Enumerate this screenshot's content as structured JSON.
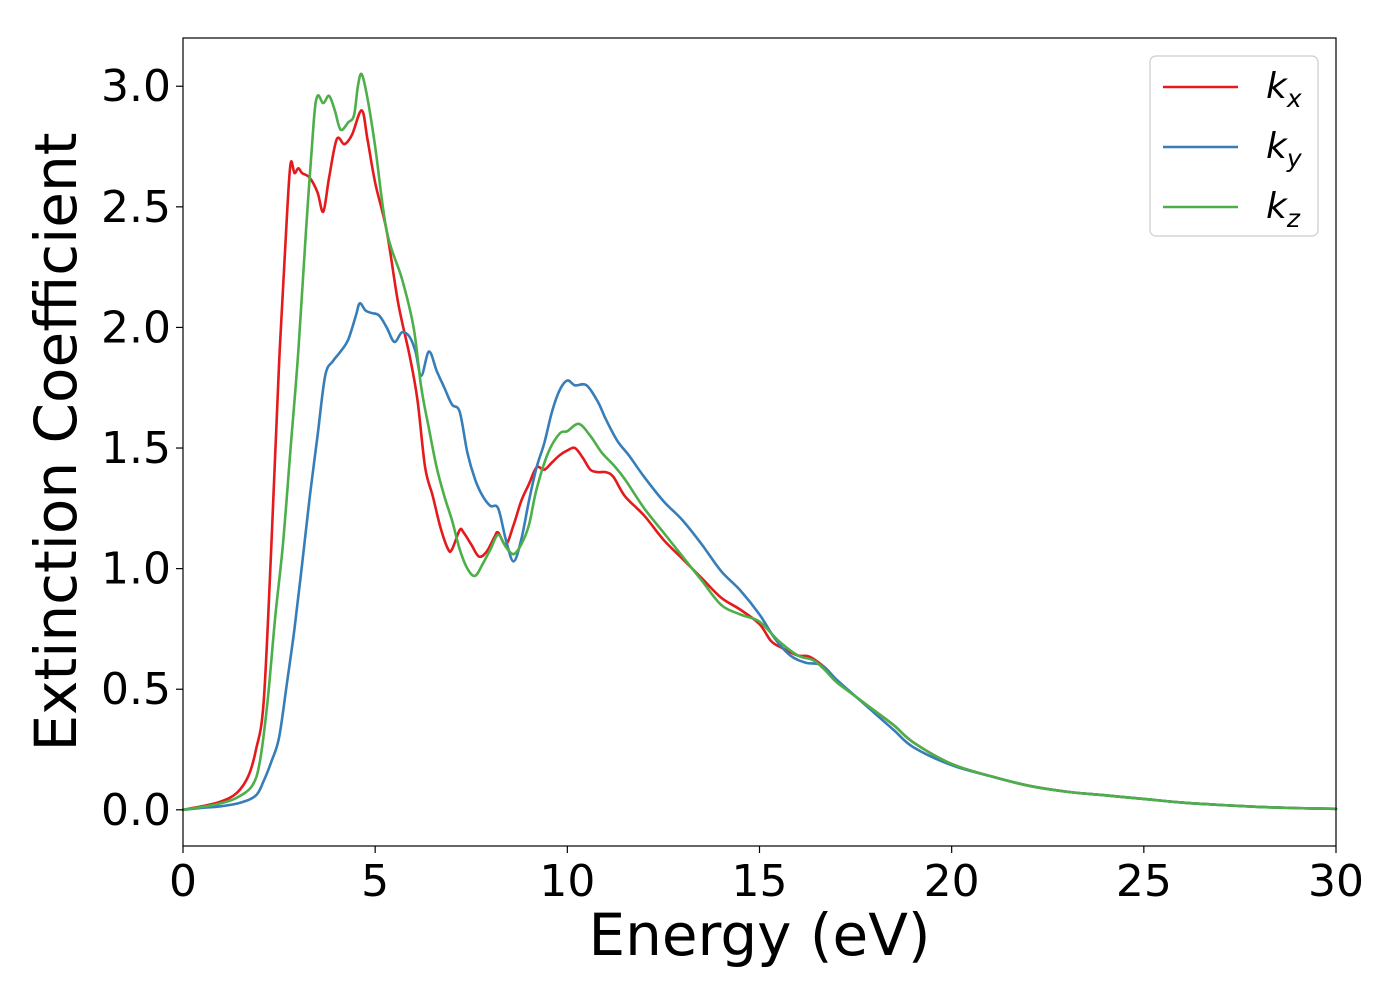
{
  "chart_data": {
    "type": "line",
    "title": "",
    "xlabel": "Energy (eV)",
    "ylabel": "Extinction Coefficient",
    "xlim": [
      0,
      30
    ],
    "ylim": [
      -0.15,
      3.2
    ],
    "xticks": [
      0,
      5,
      10,
      15,
      20,
      25,
      30
    ],
    "xtick_labels": [
      "0",
      "5",
      "10",
      "15",
      "20",
      "25",
      "30"
    ],
    "yticks": [
      0.0,
      0.5,
      1.0,
      1.5,
      2.0,
      2.5,
      3.0
    ],
    "ytick_labels": [
      "0.0",
      "0.5",
      "1.0",
      "1.5",
      "2.0",
      "2.5",
      "3.0"
    ],
    "grid": false,
    "legend_position": "top-right",
    "series": [
      {
        "name": "k_x",
        "label_base": "k",
        "label_sub": "x",
        "color": "#e41a1c",
        "points": [
          [
            0,
            0.0
          ],
          [
            0.5,
            0.015
          ],
          [
            1.0,
            0.035
          ],
          [
            1.4,
            0.07
          ],
          [
            1.7,
            0.14
          ],
          [
            1.9,
            0.25
          ],
          [
            2.1,
            0.45
          ],
          [
            2.3,
            1.1
          ],
          [
            2.5,
            1.85
          ],
          [
            2.7,
            2.45
          ],
          [
            2.8,
            2.68
          ],
          [
            2.9,
            2.64
          ],
          [
            3.0,
            2.66
          ],
          [
            3.1,
            2.64
          ],
          [
            3.3,
            2.62
          ],
          [
            3.5,
            2.56
          ],
          [
            3.65,
            2.48
          ],
          [
            3.8,
            2.62
          ],
          [
            4.0,
            2.78
          ],
          [
            4.2,
            2.76
          ],
          [
            4.4,
            2.8
          ],
          [
            4.65,
            2.9
          ],
          [
            4.8,
            2.78
          ],
          [
            5.0,
            2.6
          ],
          [
            5.3,
            2.4
          ],
          [
            5.6,
            2.1
          ],
          [
            5.9,
            1.88
          ],
          [
            6.1,
            1.7
          ],
          [
            6.3,
            1.42
          ],
          [
            6.5,
            1.3
          ],
          [
            6.7,
            1.17
          ],
          [
            6.9,
            1.08
          ],
          [
            7.0,
            1.08
          ],
          [
            7.2,
            1.16
          ],
          [
            7.3,
            1.15
          ],
          [
            7.5,
            1.1
          ],
          [
            7.7,
            1.05
          ],
          [
            7.9,
            1.07
          ],
          [
            8.1,
            1.13
          ],
          [
            8.2,
            1.15
          ],
          [
            8.4,
            1.1
          ],
          [
            8.6,
            1.18
          ],
          [
            8.8,
            1.28
          ],
          [
            9.0,
            1.35
          ],
          [
            9.2,
            1.42
          ],
          [
            9.4,
            1.41
          ],
          [
            9.6,
            1.44
          ],
          [
            9.8,
            1.47
          ],
          [
            10.0,
            1.49
          ],
          [
            10.2,
            1.5
          ],
          [
            10.4,
            1.46
          ],
          [
            10.6,
            1.41
          ],
          [
            10.8,
            1.4
          ],
          [
            11.0,
            1.4
          ],
          [
            11.2,
            1.38
          ],
          [
            11.5,
            1.3
          ],
          [
            12.0,
            1.22
          ],
          [
            12.5,
            1.12
          ],
          [
            13.0,
            1.04
          ],
          [
            13.5,
            0.96
          ],
          [
            14.0,
            0.88
          ],
          [
            14.5,
            0.83
          ],
          [
            15.0,
            0.77
          ],
          [
            15.3,
            0.7
          ],
          [
            15.6,
            0.67
          ],
          [
            16.0,
            0.64
          ],
          [
            16.3,
            0.635
          ],
          [
            16.7,
            0.59
          ],
          [
            17.0,
            0.54
          ],
          [
            17.5,
            0.47
          ],
          [
            18.0,
            0.41
          ],
          [
            18.5,
            0.35
          ],
          [
            19.0,
            0.28
          ],
          [
            20.0,
            0.19
          ],
          [
            21.0,
            0.14
          ],
          [
            22.0,
            0.1
          ],
          [
            23.0,
            0.075
          ],
          [
            24.0,
            0.06
          ],
          [
            25.0,
            0.045
          ],
          [
            26.0,
            0.03
          ],
          [
            27.0,
            0.02
          ],
          [
            28.0,
            0.012
          ],
          [
            29.0,
            0.007
          ],
          [
            30.0,
            0.004
          ]
        ]
      },
      {
        "name": "k_y",
        "label_base": "k",
        "label_sub": "y",
        "color": "#377eb8",
        "points": [
          [
            0,
            0.0
          ],
          [
            0.5,
            0.008
          ],
          [
            1.0,
            0.015
          ],
          [
            1.5,
            0.03
          ],
          [
            1.9,
            0.06
          ],
          [
            2.1,
            0.12
          ],
          [
            2.3,
            0.2
          ],
          [
            2.5,
            0.3
          ],
          [
            2.7,
            0.52
          ],
          [
            2.9,
            0.75
          ],
          [
            3.1,
            1.02
          ],
          [
            3.3,
            1.3
          ],
          [
            3.5,
            1.55
          ],
          [
            3.7,
            1.8
          ],
          [
            3.9,
            1.86
          ],
          [
            4.1,
            1.9
          ],
          [
            4.3,
            1.95
          ],
          [
            4.5,
            2.05
          ],
          [
            4.6,
            2.1
          ],
          [
            4.75,
            2.07
          ],
          [
            4.9,
            2.06
          ],
          [
            5.1,
            2.05
          ],
          [
            5.3,
            2.0
          ],
          [
            5.5,
            1.94
          ],
          [
            5.7,
            1.98
          ],
          [
            5.9,
            1.96
          ],
          [
            6.05,
            1.9
          ],
          [
            6.2,
            1.8
          ],
          [
            6.4,
            1.9
          ],
          [
            6.6,
            1.82
          ],
          [
            6.8,
            1.75
          ],
          [
            7.0,
            1.68
          ],
          [
            7.2,
            1.65
          ],
          [
            7.4,
            1.48
          ],
          [
            7.6,
            1.37
          ],
          [
            7.8,
            1.3
          ],
          [
            8.0,
            1.26
          ],
          [
            8.2,
            1.25
          ],
          [
            8.4,
            1.12
          ],
          [
            8.6,
            1.03
          ],
          [
            8.8,
            1.12
          ],
          [
            9.0,
            1.28
          ],
          [
            9.2,
            1.42
          ],
          [
            9.4,
            1.52
          ],
          [
            9.6,
            1.65
          ],
          [
            9.8,
            1.74
          ],
          [
            10.0,
            1.78
          ],
          [
            10.2,
            1.76
          ],
          [
            10.5,
            1.76
          ],
          [
            10.8,
            1.69
          ],
          [
            11.0,
            1.62
          ],
          [
            11.3,
            1.53
          ],
          [
            11.6,
            1.47
          ],
          [
            12.0,
            1.38
          ],
          [
            12.5,
            1.28
          ],
          [
            13.0,
            1.2
          ],
          [
            13.5,
            1.1
          ],
          [
            14.0,
            0.99
          ],
          [
            14.5,
            0.91
          ],
          [
            15.0,
            0.81
          ],
          [
            15.4,
            0.71
          ],
          [
            15.8,
            0.64
          ],
          [
            16.2,
            0.61
          ],
          [
            16.6,
            0.6
          ],
          [
            17.0,
            0.54
          ],
          [
            17.5,
            0.47
          ],
          [
            18.0,
            0.4
          ],
          [
            18.5,
            0.33
          ],
          [
            19.0,
            0.26
          ],
          [
            20.0,
            0.185
          ],
          [
            21.0,
            0.14
          ],
          [
            22.0,
            0.1
          ],
          [
            23.0,
            0.075
          ],
          [
            24.0,
            0.06
          ],
          [
            25.0,
            0.045
          ],
          [
            26.0,
            0.03
          ],
          [
            27.0,
            0.02
          ],
          [
            28.0,
            0.012
          ],
          [
            29.0,
            0.007
          ],
          [
            30.0,
            0.004
          ]
        ]
      },
      {
        "name": "k_z",
        "label_base": "k",
        "label_sub": "z",
        "color": "#4daf4a",
        "points": [
          [
            0,
            0.0
          ],
          [
            0.5,
            0.012
          ],
          [
            1.0,
            0.028
          ],
          [
            1.4,
            0.05
          ],
          [
            1.8,
            0.1
          ],
          [
            2.0,
            0.2
          ],
          [
            2.2,
            0.45
          ],
          [
            2.4,
            0.8
          ],
          [
            2.6,
            1.1
          ],
          [
            2.8,
            1.5
          ],
          [
            3.0,
            1.9
          ],
          [
            3.2,
            2.4
          ],
          [
            3.4,
            2.85
          ],
          [
            3.5,
            2.96
          ],
          [
            3.65,
            2.93
          ],
          [
            3.8,
            2.96
          ],
          [
            3.95,
            2.9
          ],
          [
            4.1,
            2.82
          ],
          [
            4.3,
            2.85
          ],
          [
            4.45,
            2.88
          ],
          [
            4.55,
            3.0
          ],
          [
            4.65,
            3.05
          ],
          [
            4.8,
            2.95
          ],
          [
            5.0,
            2.75
          ],
          [
            5.3,
            2.4
          ],
          [
            5.7,
            2.2
          ],
          [
            6.0,
            2.0
          ],
          [
            6.2,
            1.75
          ],
          [
            6.4,
            1.58
          ],
          [
            6.6,
            1.42
          ],
          [
            6.8,
            1.3
          ],
          [
            7.0,
            1.2
          ],
          [
            7.2,
            1.08
          ],
          [
            7.4,
            1.0
          ],
          [
            7.6,
            0.97
          ],
          [
            7.8,
            1.02
          ],
          [
            8.0,
            1.08
          ],
          [
            8.2,
            1.14
          ],
          [
            8.4,
            1.09
          ],
          [
            8.6,
            1.06
          ],
          [
            8.8,
            1.1
          ],
          [
            9.0,
            1.18
          ],
          [
            9.2,
            1.33
          ],
          [
            9.5,
            1.48
          ],
          [
            9.8,
            1.56
          ],
          [
            10.0,
            1.57
          ],
          [
            10.3,
            1.6
          ],
          [
            10.6,
            1.55
          ],
          [
            10.9,
            1.48
          ],
          [
            11.2,
            1.43
          ],
          [
            11.5,
            1.37
          ],
          [
            12.0,
            1.25
          ],
          [
            12.5,
            1.15
          ],
          [
            13.0,
            1.05
          ],
          [
            13.5,
            0.95
          ],
          [
            14.0,
            0.85
          ],
          [
            14.5,
            0.81
          ],
          [
            15.0,
            0.78
          ],
          [
            15.5,
            0.7
          ],
          [
            16.0,
            0.64
          ],
          [
            16.4,
            0.62
          ],
          [
            16.7,
            0.58
          ],
          [
            17.0,
            0.53
          ],
          [
            17.5,
            0.47
          ],
          [
            18.0,
            0.41
          ],
          [
            18.5,
            0.35
          ],
          [
            19.0,
            0.28
          ],
          [
            20.0,
            0.19
          ],
          [
            21.0,
            0.14
          ],
          [
            22.0,
            0.1
          ],
          [
            23.0,
            0.075
          ],
          [
            24.0,
            0.06
          ],
          [
            25.0,
            0.045
          ],
          [
            26.0,
            0.03
          ],
          [
            27.0,
            0.02
          ],
          [
            28.0,
            0.012
          ],
          [
            29.0,
            0.007
          ],
          [
            30.0,
            0.004
          ]
        ]
      }
    ]
  }
}
